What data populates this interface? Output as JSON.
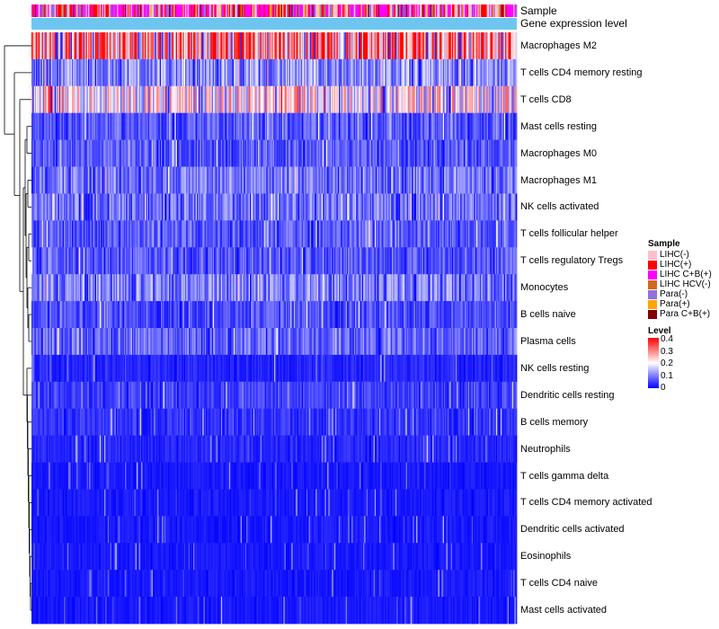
{
  "chart_data": {
    "type": "heatmap",
    "title": "",
    "annotation_rows": [
      "Sample",
      "Gene expression level"
    ],
    "rows": [
      "Macrophages M2",
      "T cells CD4 memory resting",
      "T cells CD8",
      "Mast cells resting",
      "Macrophages M0",
      "Macrophages M1",
      "NK cells activated",
      "T cells follicular helper",
      "T cells regulatory  Tregs",
      "Monocytes",
      "B cells naive",
      "Plasma cells",
      "NK cells resting",
      "Dendritic cells resting",
      "B cells memory",
      "Neutrophils",
      "T cells gamma delta",
      "T cells CD4 memory activated",
      "Dendritic cells activated",
      "Eosinophils",
      "T cells CD4 naive",
      "Mast cells activated"
    ],
    "row_mean_levels": [
      0.3,
      0.11,
      0.2,
      0.07,
      0.07,
      0.09,
      0.09,
      0.07,
      0.07,
      0.1,
      0.06,
      0.08,
      0.03,
      0.05,
      0.04,
      0.03,
      0.02,
      0.02,
      0.02,
      0.02,
      0.02,
      0.02
    ],
    "legend_sample": {
      "title": "Sample",
      "items": [
        {
          "label": "LIHC(-)",
          "color": "#ffc0cb"
        },
        {
          "label": "LIHC(+)",
          "color": "#ff0000"
        },
        {
          "label": "LIHC C+B(+)",
          "color": "#ff00ff"
        },
        {
          "label": "LIHC HCV(-)",
          "color": "#d2691e"
        },
        {
          "label": "Para(-)",
          "color": "#9370db"
        },
        {
          "label": "Para(+)",
          "color": "#ffa500"
        },
        {
          "label": "Para C+B(+)",
          "color": "#800000"
        }
      ]
    },
    "legend_level": {
      "title": "Level",
      "range": [
        0,
        0.4
      ],
      "ticks": [
        "0.4",
        "0.3",
        "0.2",
        "0.1",
        "0"
      ],
      "colors": {
        "low": "#0000ff",
        "mid": "#ffffff",
        "high": "#ff0000"
      }
    },
    "gene_expression_color": "#6ec6f0"
  }
}
